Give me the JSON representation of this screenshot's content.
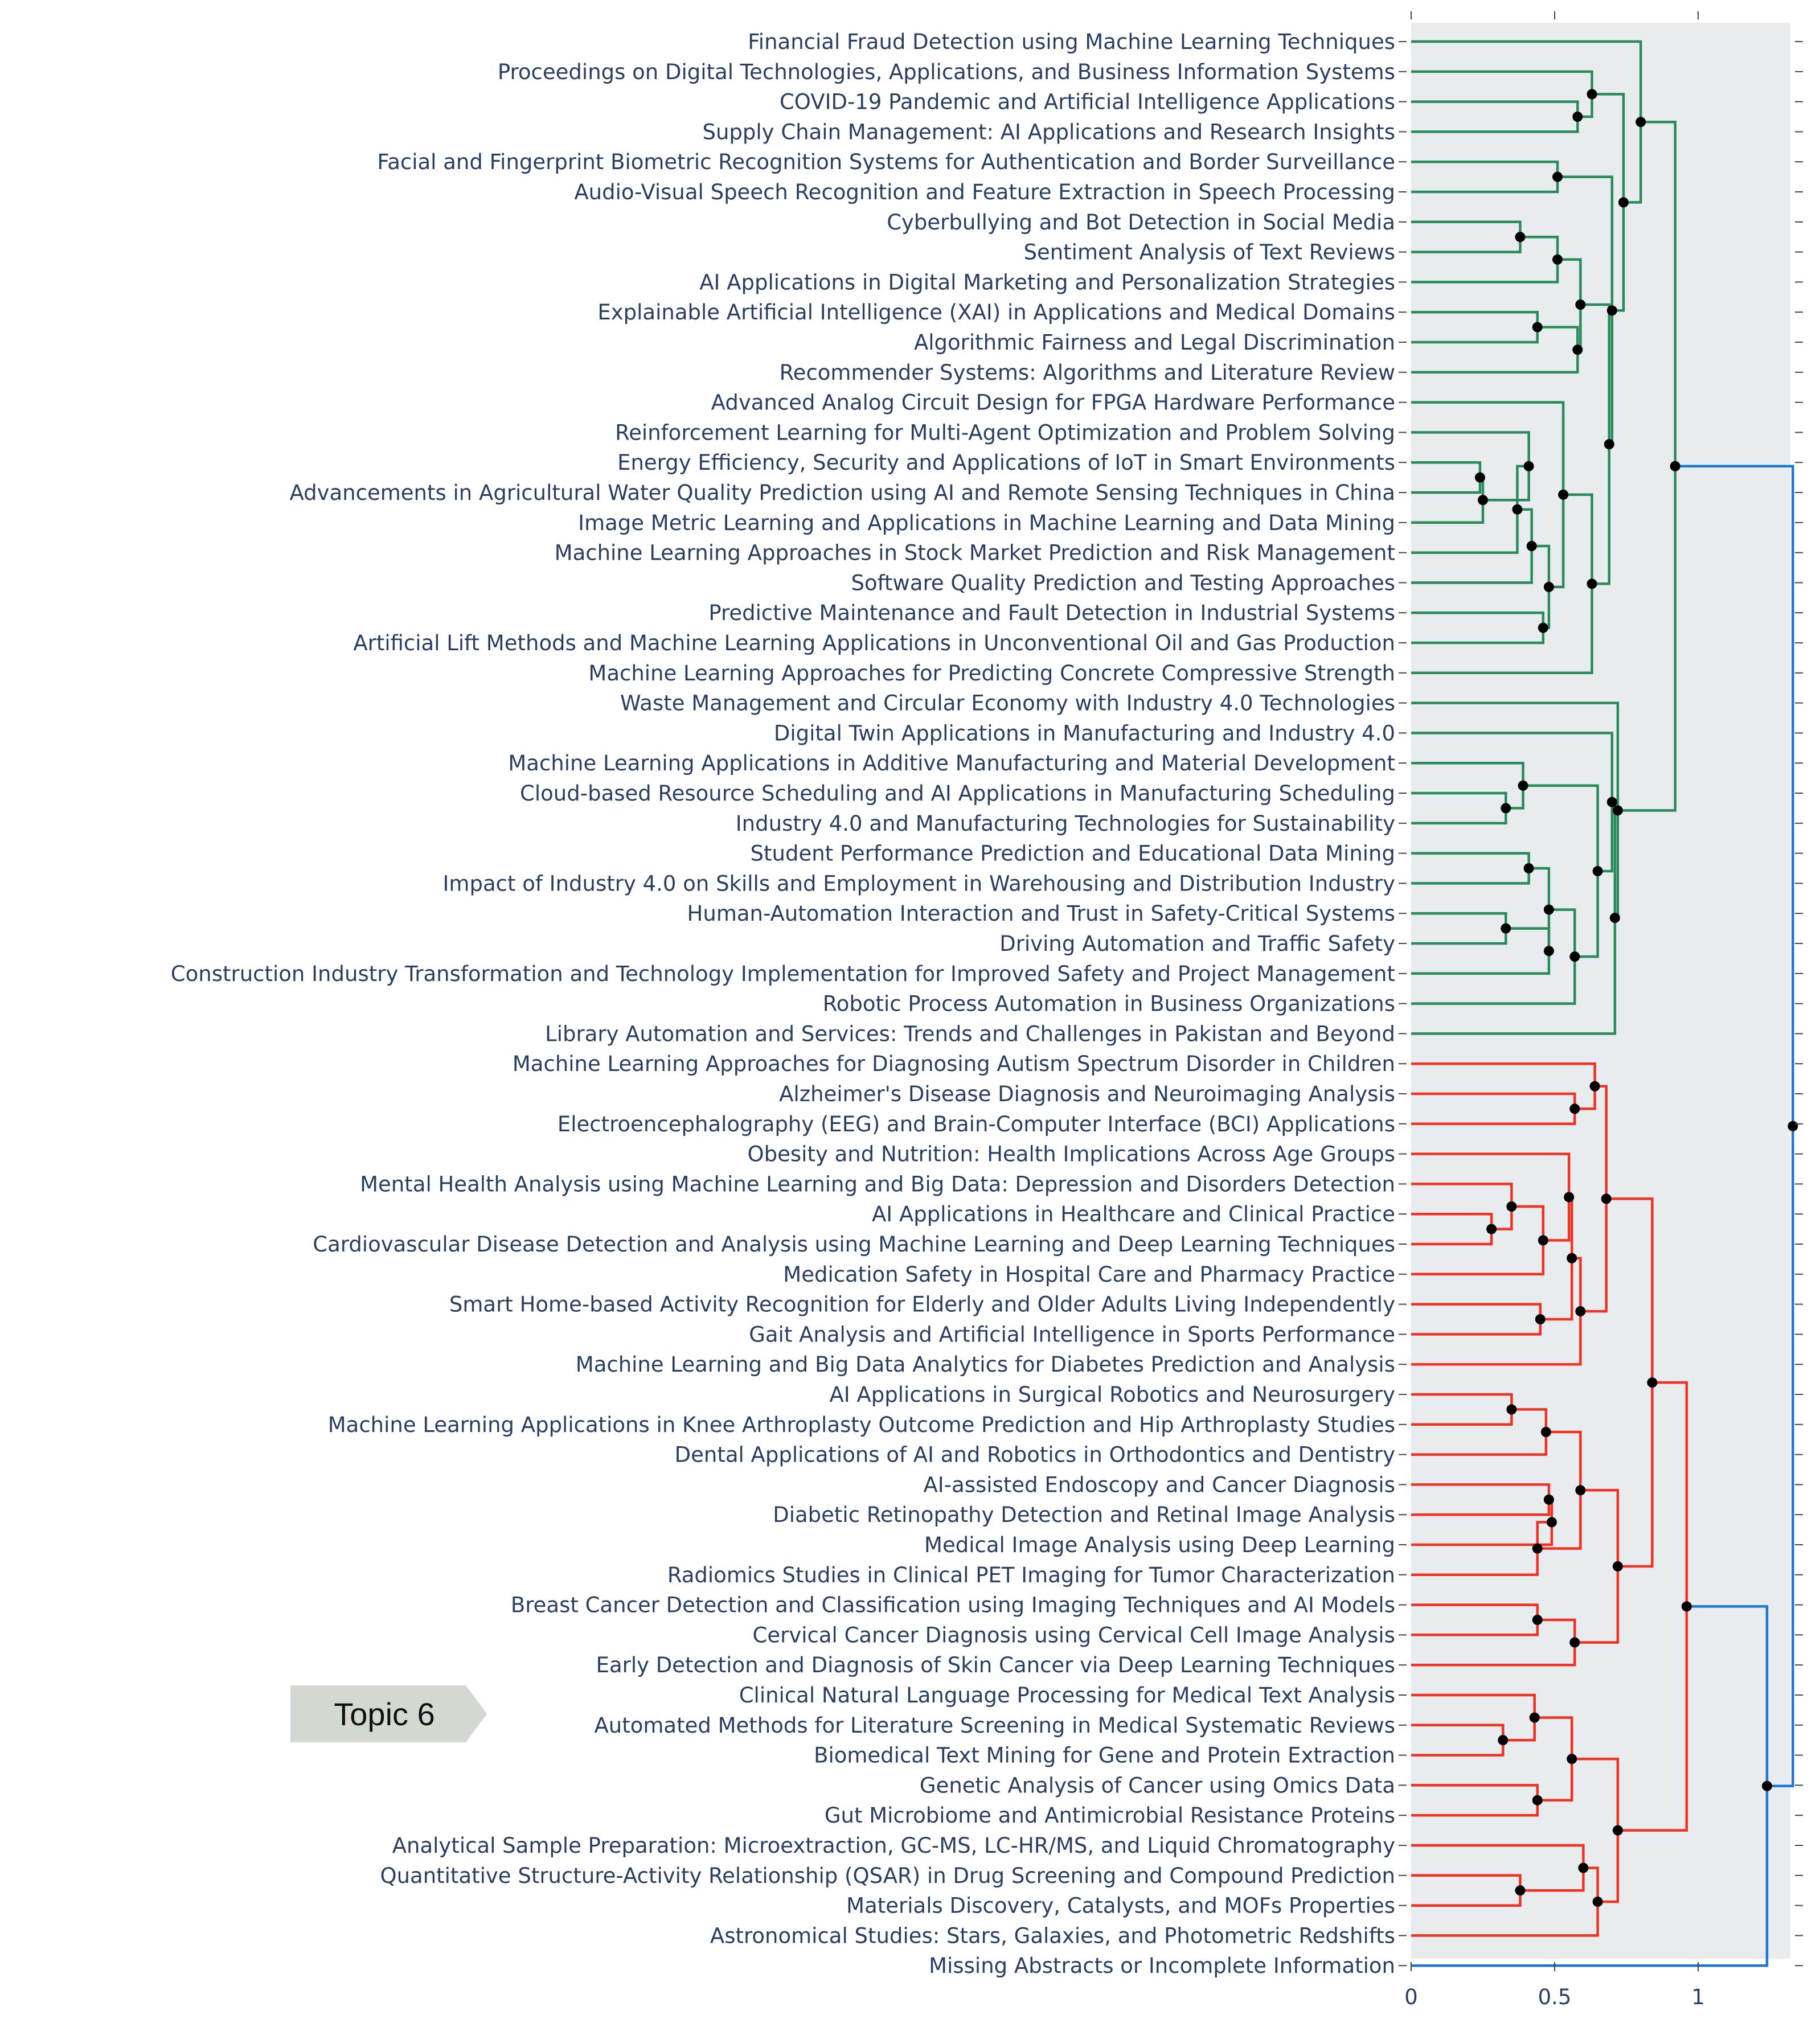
{
  "chart_data": {
    "type": "dendrogram",
    "orientation": "horizontal",
    "xlim": [
      0,
      1.35
    ],
    "xticks": [
      {
        "value": 0,
        "label": "0"
      },
      {
        "value": 0.5,
        "label": "0.5"
      },
      {
        "value": 1,
        "label": "1"
      }
    ],
    "colors": {
      "green": "#2a8a5a",
      "red": "#ee3322",
      "blue": "#1f77d4",
      "plot_bg": "#e9ecef",
      "callout_bg": "#d3d8d0"
    },
    "leaves": [
      "Financial Fraud Detection using Machine Learning Techniques",
      "Proceedings on Digital Technologies, Applications, and Business Information Systems",
      "COVID-19 Pandemic and Artificial Intelligence Applications",
      "Supply Chain Management: AI Applications and Research Insights",
      "Facial and Fingerprint Biometric Recognition Systems for Authentication and Border Surveillance",
      "Audio-Visual Speech Recognition and Feature Extraction in Speech Processing",
      "Cyberbullying and Bot Detection in Social Media",
      "Sentiment Analysis of Text Reviews",
      "AI Applications in Digital Marketing and Personalization Strategies",
      "Explainable Artificial Intelligence (XAI) in Applications and Medical Domains",
      "Algorithmic Fairness and Legal Discrimination",
      "Recommender Systems: Algorithms and Literature Review",
      "Advanced Analog Circuit Design for FPGA Hardware Performance",
      "Reinforcement Learning for Multi-Agent Optimization and Problem Solving",
      "Energy Efficiency, Security and Applications of IoT in Smart Environments",
      "Advancements in Agricultural Water Quality Prediction using AI and Remote Sensing Techniques in China",
      "Image Metric Learning and Applications in Machine Learning and Data Mining",
      "Machine Learning Approaches in Stock Market Prediction and Risk Management",
      "Software Quality Prediction and Testing Approaches",
      "Predictive Maintenance and Fault Detection in Industrial Systems",
      "Artificial Lift Methods and Machine Learning Applications in Unconventional Oil and Gas Production",
      "Machine Learning Approaches for Predicting Concrete Compressive Strength",
      "Waste Management and Circular Economy with Industry 4.0 Technologies",
      "Digital Twin Applications in Manufacturing and Industry 4.0",
      "Machine Learning Applications in Additive Manufacturing and Material Development",
      "Cloud-based Resource Scheduling and AI Applications in Manufacturing Scheduling",
      "Industry 4.0 and Manufacturing Technologies for Sustainability",
      "Student Performance Prediction and Educational Data Mining",
      "Impact of Industry 4.0 on Skills and Employment in Warehousing and Distribution Industry",
      "Human-Automation Interaction and Trust in Safety-Critical Systems",
      "Driving Automation and Traffic Safety",
      "Construction Industry Transformation and Technology Implementation for Improved Safety and Project Management",
      "Robotic Process Automation in Business Organizations",
      "Library Automation and Services: Trends and Challenges in Pakistan and Beyond",
      "Machine Learning Approaches for Diagnosing Autism Spectrum Disorder in Children",
      "Alzheimer's Disease Diagnosis and Neuroimaging Analysis",
      "Electroencephalography (EEG) and Brain-Computer Interface (BCI) Applications",
      "Obesity and Nutrition: Health Implications Across Age Groups",
      "Mental Health Analysis using Machine Learning and Big Data: Depression and Disorders Detection",
      "AI Applications in Healthcare and Clinical Practice",
      "Cardiovascular Disease Detection and Analysis using Machine Learning and Deep Learning Techniques",
      "Medication Safety in Hospital Care and Pharmacy Practice",
      "Smart Home-based Activity Recognition for Elderly and Older Adults Living Independently",
      "Gait Analysis and Artificial Intelligence in Sports Performance",
      "Machine Learning and Big Data Analytics for Diabetes Prediction and Analysis",
      "AI Applications in Surgical Robotics and Neurosurgery",
      "Machine Learning Applications in Knee Arthroplasty Outcome Prediction and Hip Arthroplasty Studies",
      "Dental Applications of AI and Robotics in Orthodontics and Dentistry",
      "AI-assisted Endoscopy and Cancer Diagnosis",
      "Diabetic Retinopathy Detection and Retinal Image Analysis",
      "Medical Image Analysis using Deep Learning",
      "Radiomics Studies in Clinical PET Imaging for Tumor Characterization",
      "Breast Cancer Detection and Classification using Imaging Techniques and AI Models",
      "Cervical Cancer Diagnosis using Cervical Cell Image Analysis",
      "Early Detection and Diagnosis of Skin Cancer via Deep Learning Techniques",
      "Clinical Natural Language Processing for Medical Text Analysis",
      "Automated Methods for Literature Screening in Medical Systematic Reviews",
      "Biomedical Text Mining for Gene and Protein Extraction",
      "Genetic Analysis of Cancer using Omics Data",
      "Gut Microbiome and Antimicrobial Resistance Proteins",
      "Analytical Sample Preparation: Microextraction, GC-MS, LC-HR/MS, and Liquid Chromatography",
      "Quantitative Structure-Activity Relationship (QSAR) in Drug Screening and Compound Prediction",
      "Materials Discovery, Catalysts, and MOFs Properties",
      "Astronomical Studies: Stars, Galaxies, and Photometric Redshifts",
      "Missing Abstracts or Incomplete Information"
    ],
    "merges": [
      {
        "id": "g1",
        "a": 2,
        "b": 3,
        "h": 0.58,
        "color": "green"
      },
      {
        "id": "g2",
        "a": 1,
        "b": "g1",
        "h": 0.63,
        "color": "green"
      },
      {
        "id": "g3",
        "a": 4,
        "b": 5,
        "h": 0.51,
        "color": "green"
      },
      {
        "id": "g4",
        "a": 6,
        "b": 7,
        "h": 0.38,
        "color": "green"
      },
      {
        "id": "g5",
        "a": "g4",
        "b": 8,
        "h": 0.51,
        "color": "green"
      },
      {
        "id": "g6",
        "a": 9,
        "b": 10,
        "h": 0.44,
        "color": "green"
      },
      {
        "id": "g7",
        "a": "g6",
        "b": 11,
        "h": 0.58,
        "color": "green"
      },
      {
        "id": "g8",
        "a": "g5",
        "b": "g7",
        "h": 0.59,
        "color": "green"
      },
      {
        "id": "g9",
        "a": 14,
        "b": 15,
        "h": 0.24,
        "color": "green"
      },
      {
        "id": "g10",
        "a": "g9",
        "b": 16,
        "h": 0.25,
        "color": "green"
      },
      {
        "id": "g11",
        "a": 13,
        "b": "g10",
        "h": 0.41,
        "color": "green"
      },
      {
        "id": "g12",
        "a": "g11",
        "b": 17,
        "h": 0.37,
        "color": "green"
      },
      {
        "id": "g13",
        "a": "g12",
        "b": 18,
        "h": 0.42,
        "color": "green"
      },
      {
        "id": "g14",
        "a": 19,
        "b": 20,
        "h": 0.46,
        "color": "green"
      },
      {
        "id": "g15",
        "a": "g13",
        "b": "g14",
        "h": 0.48,
        "color": "green"
      },
      {
        "id": "g16",
        "a": 12,
        "b": "g15",
        "h": 0.53,
        "color": "green"
      },
      {
        "id": "g17",
        "a": "g16",
        "b": 21,
        "h": 0.63,
        "color": "green"
      },
      {
        "id": "g18",
        "a": "g8",
        "b": "g17",
        "h": 0.69,
        "color": "green"
      },
      {
        "id": "g19",
        "a": "g3",
        "b": "g18",
        "h": 0.7,
        "color": "green"
      },
      {
        "id": "g20",
        "a": "g2",
        "b": "g19",
        "h": 0.74,
        "color": "green"
      },
      {
        "id": "g21",
        "a": 0,
        "b": "g20",
        "h": 0.8,
        "color": "green"
      },
      {
        "id": "g22",
        "a": 25,
        "b": 26,
        "h": 0.33,
        "color": "green"
      },
      {
        "id": "g23",
        "a": 24,
        "b": "g22",
        "h": 0.39,
        "color": "green"
      },
      {
        "id": "g24",
        "a": 27,
        "b": 28,
        "h": 0.41,
        "color": "green"
      },
      {
        "id": "g25",
        "a": 29,
        "b": 30,
        "h": 0.33,
        "color": "green"
      },
      {
        "id": "g26",
        "a": "g25",
        "b": 31,
        "h": 0.48,
        "color": "green"
      },
      {
        "id": "g27",
        "a": "g24",
        "b": "g26",
        "h": 0.48,
        "color": "green"
      },
      {
        "id": "g28",
        "a": "g27",
        "b": 32,
        "h": 0.57,
        "color": "green"
      },
      {
        "id": "g29",
        "a": "g23",
        "b": "g28",
        "h": 0.65,
        "color": "green"
      },
      {
        "id": "g30",
        "a": 23,
        "b": "g29",
        "h": 0.7,
        "color": "green"
      },
      {
        "id": "g31",
        "a": "g30",
        "b": 33,
        "h": 0.71,
        "color": "green"
      },
      {
        "id": "g32",
        "a": 22,
        "b": "g31",
        "h": 0.72,
        "color": "green"
      },
      {
        "id": "g33",
        "a": "g21",
        "b": "g32",
        "h": 0.92,
        "color": "green"
      },
      {
        "id": "r1",
        "a": 35,
        "b": 36,
        "h": 0.57,
        "color": "red"
      },
      {
        "id": "r2",
        "a": 34,
        "b": "r1",
        "h": 0.64,
        "color": "red"
      },
      {
        "id": "r3",
        "a": 39,
        "b": 40,
        "h": 0.28,
        "color": "red"
      },
      {
        "id": "r4",
        "a": 38,
        "b": "r3",
        "h": 0.35,
        "color": "red"
      },
      {
        "id": "r5",
        "a": "r4",
        "b": 41,
        "h": 0.46,
        "color": "red"
      },
      {
        "id": "r6",
        "a": 37,
        "b": "r5",
        "h": 0.55,
        "color": "red"
      },
      {
        "id": "r7",
        "a": 42,
        "b": 43,
        "h": 0.45,
        "color": "red"
      },
      {
        "id": "r8",
        "a": "r6",
        "b": "r7",
        "h": 0.56,
        "color": "red"
      },
      {
        "id": "r9",
        "a": "r8",
        "b": 44,
        "h": 0.59,
        "color": "red"
      },
      {
        "id": "r10",
        "a": "r2",
        "b": "r9",
        "h": 0.68,
        "color": "red"
      },
      {
        "id": "r11",
        "a": 45,
        "b": 46,
        "h": 0.35,
        "color": "red"
      },
      {
        "id": "r12",
        "a": "r11",
        "b": 47,
        "h": 0.47,
        "color": "red"
      },
      {
        "id": "r13",
        "a": 48,
        "b": 49,
        "h": 0.48,
        "color": "red"
      },
      {
        "id": "r14",
        "a": "r13",
        "b": 50,
        "h": 0.49,
        "color": "red"
      },
      {
        "id": "r15",
        "a": "r14",
        "b": 51,
        "h": 0.44,
        "color": "red"
      },
      {
        "id": "r16",
        "a": "r12",
        "b": "r15",
        "h": 0.59,
        "color": "red"
      },
      {
        "id": "r17",
        "a": 52,
        "b": 53,
        "h": 0.44,
        "color": "red"
      },
      {
        "id": "r18",
        "a": "r17",
        "b": 54,
        "h": 0.57,
        "color": "red"
      },
      {
        "id": "r19",
        "a": "r16",
        "b": "r18",
        "h": 0.72,
        "color": "red"
      },
      {
        "id": "r20",
        "a": "r10",
        "b": "r19",
        "h": 0.84,
        "color": "red"
      },
      {
        "id": "r21",
        "a": 56,
        "b": 57,
        "h": 0.32,
        "color": "red"
      },
      {
        "id": "r22",
        "a": 55,
        "b": "r21",
        "h": 0.43,
        "color": "red"
      },
      {
        "id": "r23",
        "a": 58,
        "b": 59,
        "h": 0.44,
        "color": "red"
      },
      {
        "id": "r24",
        "a": "r22",
        "b": "r23",
        "h": 0.56,
        "color": "red"
      },
      {
        "id": "r25",
        "a": 61,
        "b": 62,
        "h": 0.38,
        "color": "red"
      },
      {
        "id": "r26",
        "a": 60,
        "b": "r25",
        "h": 0.6,
        "color": "red"
      },
      {
        "id": "r27",
        "a": "r26",
        "b": 63,
        "h": 0.65,
        "color": "red"
      },
      {
        "id": "r28",
        "a": "r24",
        "b": "r27",
        "h": 0.72,
        "color": "red"
      },
      {
        "id": "r29",
        "a": "r20",
        "b": "r28",
        "h": 0.96,
        "color": "red"
      },
      {
        "id": "b1",
        "a": "r29",
        "b": 64,
        "h": 1.24,
        "color": "blue"
      },
      {
        "id": "b2",
        "a": "g33",
        "b": "b1",
        "h": 1.33,
        "color": "blue"
      }
    ],
    "annotation": {
      "text": "Topic 6",
      "leaf": 56
    }
  }
}
